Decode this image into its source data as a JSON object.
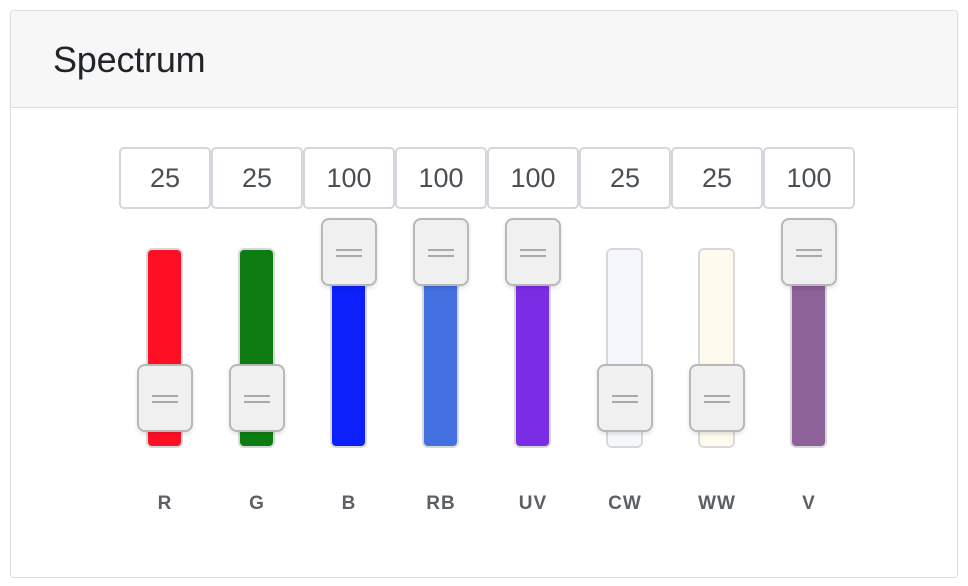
{
  "title": "Spectrum",
  "channels": [
    {
      "label": "R",
      "value": "25",
      "level": 0.25,
      "color": "#ff0f24"
    },
    {
      "label": "G",
      "value": "25",
      "level": 0.25,
      "color": "#0d7d12"
    },
    {
      "label": "B",
      "value": "100",
      "level": 1.0,
      "color": "#0b20fb"
    },
    {
      "label": "RB",
      "value": "100",
      "level": 1.0,
      "color": "#4370e1"
    },
    {
      "label": "UV",
      "value": "100",
      "level": 1.0,
      "color": "#7b2de5"
    },
    {
      "label": "CW",
      "value": "25",
      "level": 0.25,
      "color": "#f6f7fc"
    },
    {
      "label": "WW",
      "value": "25",
      "level": 0.25,
      "color": "#fefaee"
    },
    {
      "label": "V",
      "value": "100",
      "level": 1.0,
      "color": "#8d6298"
    }
  ]
}
